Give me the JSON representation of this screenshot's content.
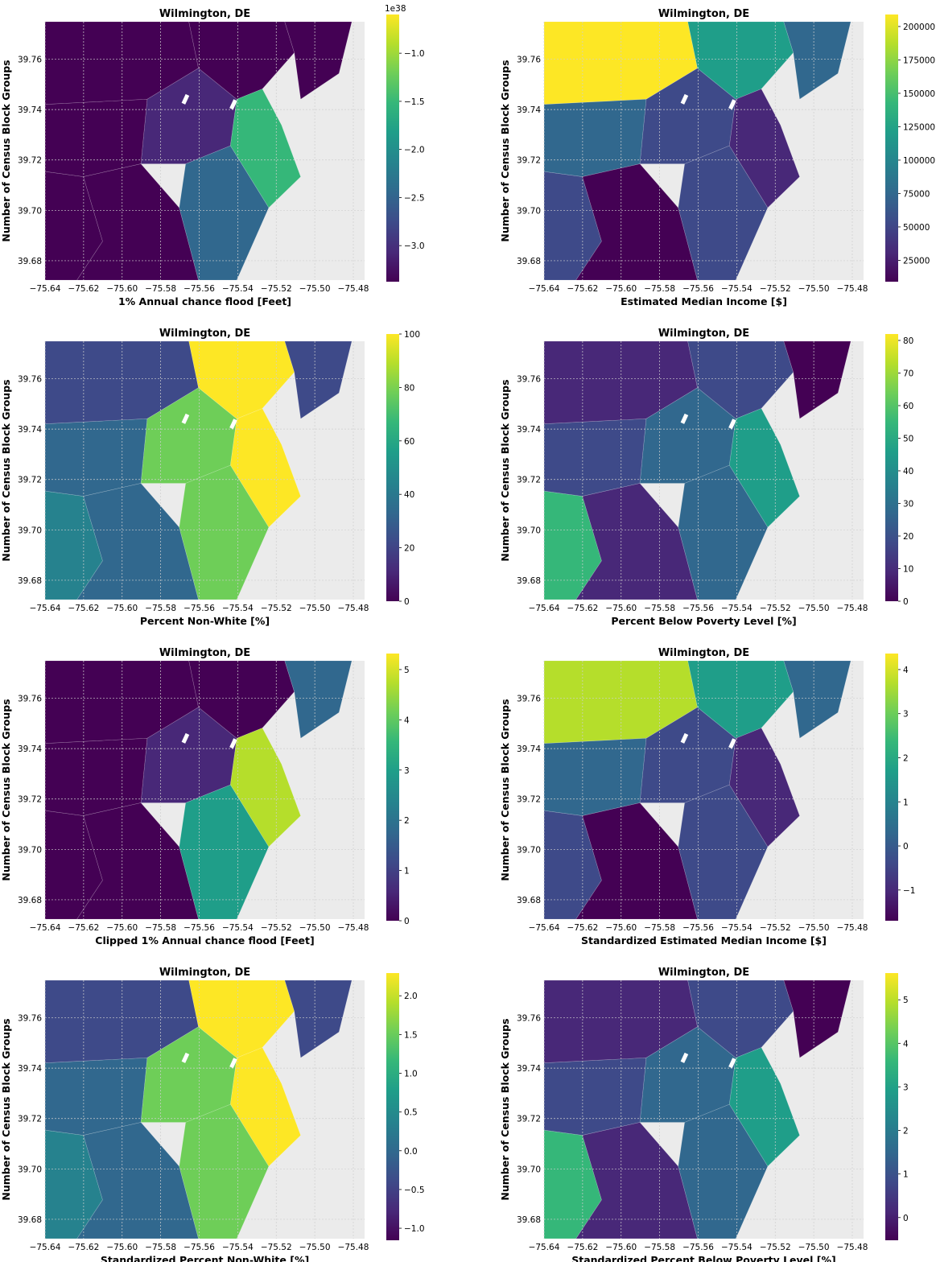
{
  "colors": {
    "plot_background": "#ebebeb",
    "gridline": "#cfcfcf",
    "viridis": [
      "#440154",
      "#482878",
      "#3e4a89",
      "#31688e",
      "#26828e",
      "#1f9e89",
      "#35b779",
      "#6ece58",
      "#b5de2b",
      "#fde725"
    ]
  },
  "shared_axes": {
    "x_ticks": [
      "−75.64",
      "−75.62",
      "−75.60",
      "−75.58",
      "−75.56",
      "−75.54",
      "−75.52",
      "−75.50",
      "−75.48"
    ],
    "y_ticks": [
      "39.76",
      "39.74",
      "39.72",
      "39.70",
      "39.68"
    ],
    "ylabel": "Number of Census Block Groups"
  },
  "panels": [
    {
      "title": "Wilmington, DE",
      "xlabel": "1% Annual chance flood [Feet]",
      "colorbar_exponent": "1e38",
      "colorbar_ticks": [
        "−1.0",
        "−1.5",
        "−2.0",
        "−2.5",
        "−3.0"
      ],
      "colorbar_tick_fracs": [
        0.855,
        0.675,
        0.495,
        0.315,
        0.135
      ]
    },
    {
      "title": "Wilmington, DE",
      "xlabel": "Estimated Median Income [$]",
      "colorbar_exponent": "",
      "colorbar_ticks": [
        "200000",
        "175000",
        "150000",
        "125000",
        "100000",
        "75000",
        "50000",
        "25000"
      ],
      "colorbar_tick_fracs": [
        0.955,
        0.83,
        0.705,
        0.58,
        0.455,
        0.33,
        0.205,
        0.08
      ]
    },
    {
      "title": "Wilmington, DE",
      "xlabel": "Percent Non-White [%]",
      "colorbar_exponent": "",
      "colorbar_ticks": [
        "100",
        "80",
        "60",
        "40",
        "20",
        "0"
      ],
      "colorbar_tick_fracs": [
        1.0,
        0.8,
        0.6,
        0.4,
        0.2,
        0.0
      ]
    },
    {
      "title": "Wilmington, DE",
      "xlabel": "Percent Below Poverty Level [%]",
      "colorbar_exponent": "",
      "colorbar_ticks": [
        "80",
        "70",
        "60",
        "50",
        "40",
        "30",
        "20",
        "10",
        "0"
      ],
      "colorbar_tick_fracs": [
        0.976,
        0.854,
        0.732,
        0.61,
        0.488,
        0.366,
        0.244,
        0.122,
        0.0
      ]
    },
    {
      "title": "Wilmington, DE",
      "xlabel": "Clipped 1% Annual chance flood [Feet]",
      "colorbar_exponent": "",
      "colorbar_ticks": [
        "5",
        "4",
        "3",
        "2",
        "1",
        "0"
      ],
      "colorbar_tick_fracs": [
        0.94,
        0.752,
        0.564,
        0.376,
        0.188,
        0.0
      ]
    },
    {
      "title": "Wilmington, DE",
      "xlabel": "Standardized Estimated Median Income [$]",
      "colorbar_exponent": "",
      "colorbar_ticks": [
        "4",
        "3",
        "2",
        "1",
        "0",
        "−1"
      ],
      "colorbar_tick_fracs": [
        0.94,
        0.775,
        0.61,
        0.445,
        0.28,
        0.115
      ]
    },
    {
      "title": "Wilmington, DE",
      "xlabel": "Standardized Percent Non-White [%]",
      "colorbar_exponent": "",
      "colorbar_ticks": [
        "2.0",
        "1.5",
        "1.0",
        "0.5",
        "0.0",
        "−0.5",
        "−1.0"
      ],
      "colorbar_tick_fracs": [
        0.915,
        0.77,
        0.625,
        0.48,
        0.335,
        0.19,
        0.045
      ]
    },
    {
      "title": "Wilmington, DE",
      "xlabel": "Standardized Percent Below Poverty Level [%]",
      "colorbar_exponent": "",
      "colorbar_ticks": [
        "5",
        "4",
        "3",
        "2",
        "1",
        "0"
      ],
      "colorbar_tick_fracs": [
        0.9,
        0.737,
        0.574,
        0.411,
        0.248,
        0.085
      ]
    }
  ]
}
